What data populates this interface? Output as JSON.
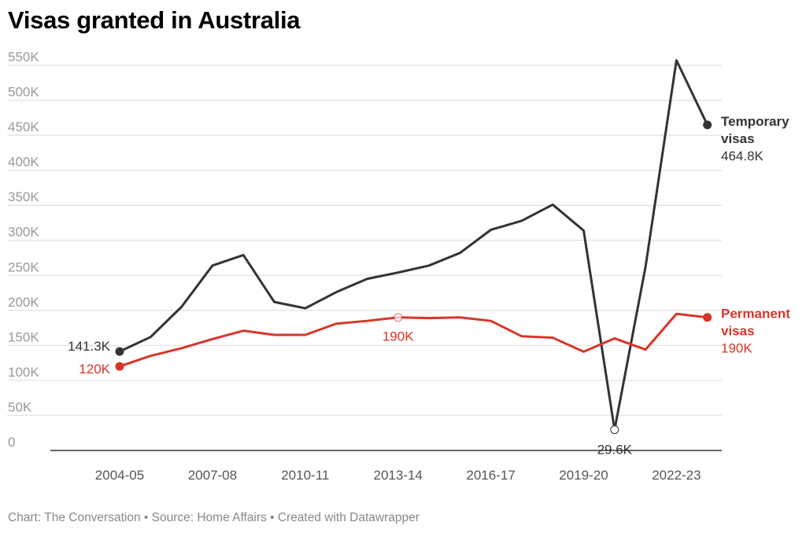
{
  "title": "Visas granted in Australia",
  "footer": "Chart: The Conversation • Source: Home Affairs • Created with Datawrapper",
  "chart_data": {
    "type": "line",
    "title": "Visas granted in Australia",
    "x": [
      "2004-05",
      "2005-06",
      "2006-07",
      "2007-08",
      "2008-09",
      "2009-10",
      "2010-11",
      "2011-12",
      "2012-13",
      "2013-14",
      "2014-15",
      "2015-16",
      "2016-17",
      "2017-18",
      "2018-19",
      "2019-20",
      "2020-21",
      "2021-22",
      "2022-23",
      "2023-24"
    ],
    "x_tick_labels": [
      "2004-05",
      "2007-08",
      "2010-11",
      "2013-14",
      "2016-17",
      "2019-20",
      "2022-23"
    ],
    "y_ticks": [
      0,
      50,
      100,
      150,
      200,
      250,
      300,
      350,
      400,
      450,
      500,
      550
    ],
    "y_tick_labels": [
      "0",
      "50K",
      "100K",
      "150K",
      "200K",
      "250K",
      "300K",
      "350K",
      "400K",
      "450K",
      "500K",
      "550K"
    ],
    "ylim": [
      0,
      550
    ],
    "yunit": "thousands",
    "grid": true,
    "series": [
      {
        "name": "Temporary visas",
        "color": "#333333",
        "values": [
          141.3,
          162,
          205,
          264,
          279,
          212,
          203,
          226,
          245,
          254,
          264,
          282,
          315,
          328,
          351,
          314,
          29.6,
          262,
          557,
          464.8
        ],
        "end_label": "464.8K",
        "start_label": "141.3K",
        "annotation": {
          "x": "2020-21",
          "label": "29.6K"
        }
      },
      {
        "name": "Permanent visas",
        "color": "#d8352a",
        "values": [
          120,
          135,
          146,
          159,
          171,
          165,
          165,
          181,
          185,
          190,
          189,
          190,
          185,
          163,
          161,
          141,
          160,
          144,
          195,
          190
        ],
        "end_label": "190K",
        "start_label": "120K",
        "annotation": {
          "x": "2013-14",
          "label": "190K"
        }
      }
    ]
  }
}
